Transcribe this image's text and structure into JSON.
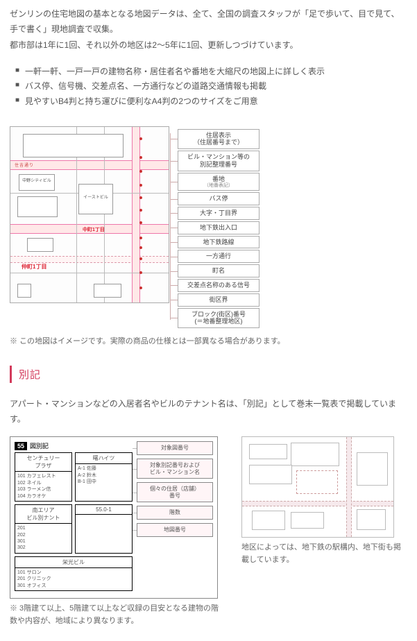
{
  "intro": {
    "line1": "ゼンリンの住宅地図の基本となる地図データは、全て、全国の調査スタッフが「足で歩いて、目で見て、手で書く」現地調査で収集。",
    "line2": "都市部は1年に1回、それ以外の地区は2～5年に1回、更新しつづけています。"
  },
  "features": [
    "一軒一軒、一戸一戸の建物名称・居住者名や番地を大縮尺の地図上に詳しく表示",
    "バス停、信号機、交差点名、一方通行などの道路交通情報も掲載",
    "見やすいB4判と持ち運びに便利なA4判の2つのサイズをご用意"
  ],
  "map": {
    "street_label": "住吉通り",
    "bldg_center": "中野シティビル",
    "bldg_east": "イーストビル",
    "block_a": "中町1丁目",
    "block_b": "仲町1丁目",
    "note": "※ この地図はイメージです。実際の商品の仕様とは一部異なる場合があります。",
    "legend": [
      {
        "label": "住居表示\n（住居番号まで）"
      },
      {
        "label": "ビル・マンション等の\n別記整理番号"
      },
      {
        "label": "番地",
        "sub": "（地番表記）"
      },
      {
        "label": "バス停"
      },
      {
        "label": "大字・丁目界"
      },
      {
        "label": "地下鉄出入口"
      },
      {
        "label": "地下鉄路線"
      },
      {
        "label": "一方通行"
      },
      {
        "label": "町名"
      },
      {
        "label": "交差点名称のある信号"
      },
      {
        "label": "街区界"
      },
      {
        "label": "ブロック(街区)番号\n(＝地番整理地区)"
      }
    ]
  },
  "bekki": {
    "heading": "別記",
    "lead": "アパート・マンションなどの入居者名やビルのテナント名は、「別記」として巻末一覧表で掲載しています。",
    "index_num": "55",
    "index_title": "図別記",
    "group_a": {
      "title": "センチュリー\nプラザ",
      "body": "101 カフェレスト\n102 ネイル\n103 ラーメン信\n104 カラオケ"
    },
    "group_b": {
      "title": "南エリア\nビル別ナント",
      "body": "201\n202\n301\n302"
    },
    "group_c": {
      "title": "55.0-1",
      "body": ""
    },
    "group_d": {
      "title": "栄光ビル",
      "body": "101 サロン\n201 クリニック\n301 オフィス"
    },
    "group_e": {
      "title": "曙ハイツ",
      "body": "A-1 佐藤\nA-2 鈴木\nB-1 田中"
    },
    "tags": [
      {
        "label": "対象図番号"
      },
      {
        "label": "対象別記番号および\nビル・マンション名"
      },
      {
        "label": "個々の住居（店舗）\n番号"
      },
      {
        "label": "階数"
      },
      {
        "label": "地図番号"
      }
    ],
    "note": "※ 3階建て以上、5階建て以上など収録の目安となる建物の階数や内容が、地域により異なります。"
  },
  "metro": {
    "note": "地区によっては、地下鉄の駅構内、地下街も掲載しています。"
  },
  "colors": {
    "accent": "#d33a5b",
    "road": "#ffe8e8",
    "road_border": "#e7a",
    "text": "#555"
  }
}
